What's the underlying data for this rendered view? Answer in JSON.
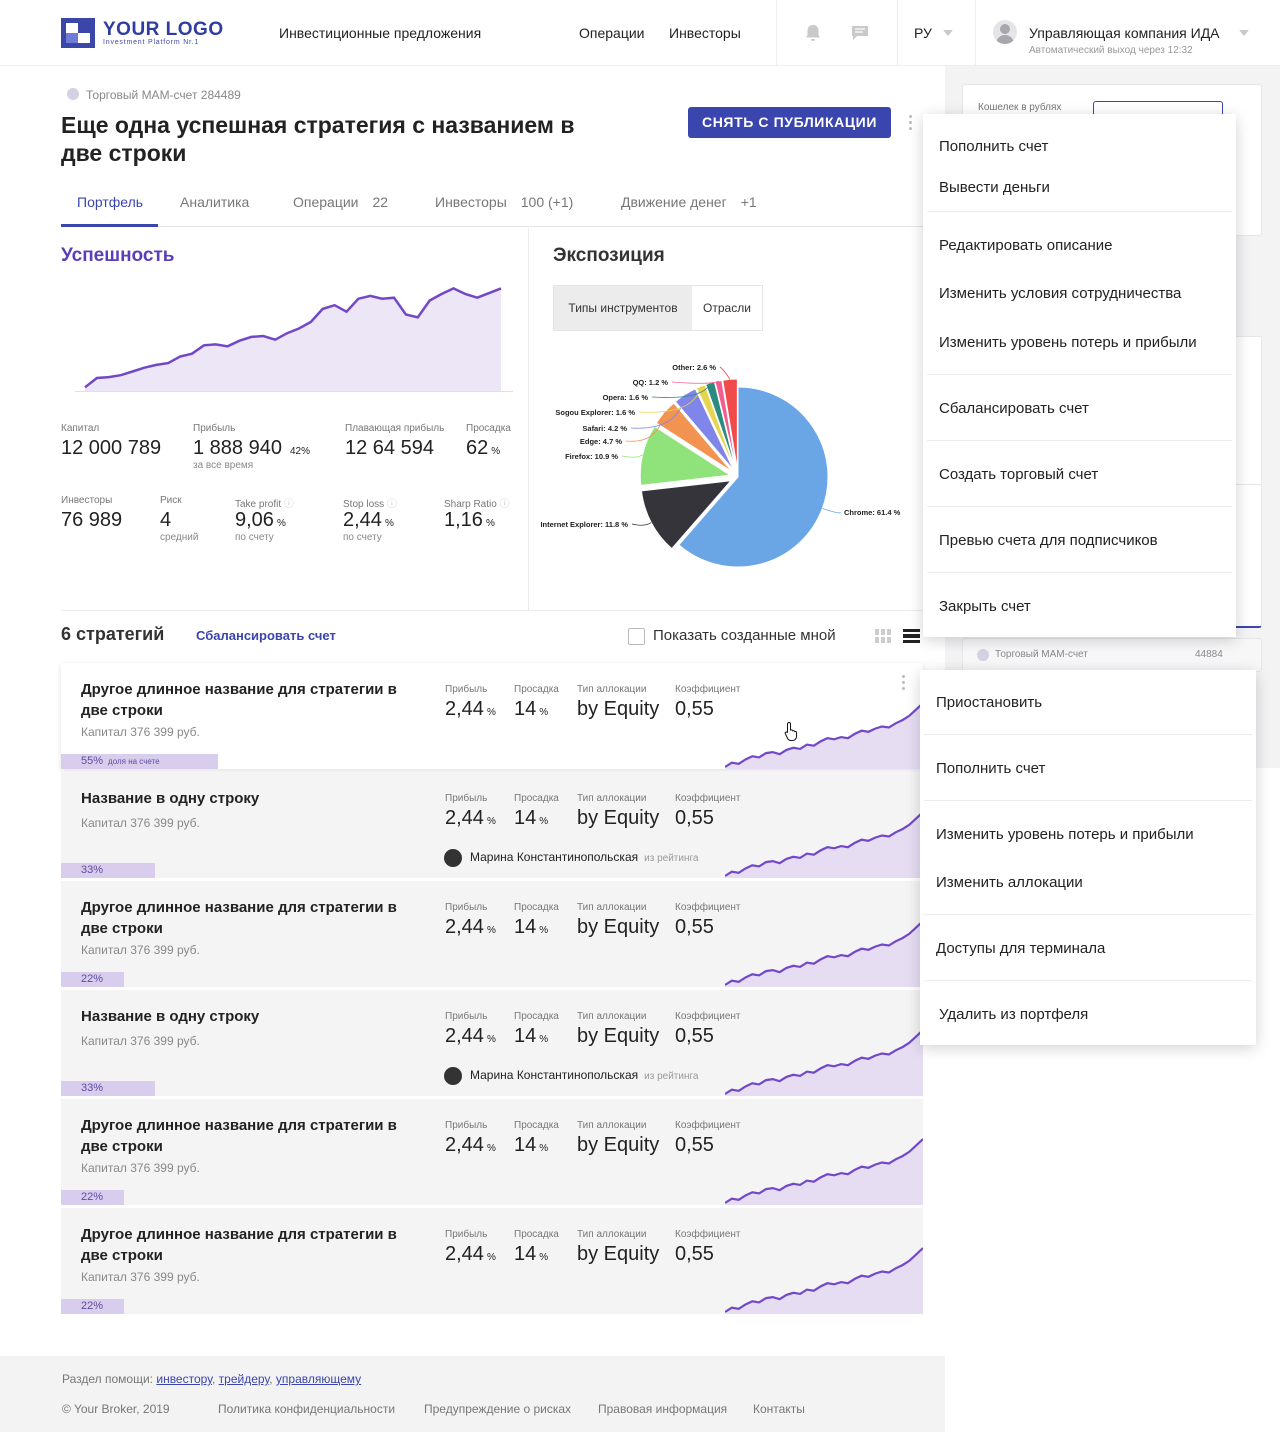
{
  "header": {
    "logo_title": "YOUR LOGO",
    "logo_sub": "Investment Platform Nr.1",
    "nav_offers": "Инвестиционные предложения",
    "nav_operations": "Операции",
    "nav_investors": "Инвесторы",
    "lang": "РУ",
    "company": "Управляющая компания ИДА",
    "autologout": "Автоматический выход через 12:32"
  },
  "right_panel": {
    "wallet_label": "Кошелек в рублях",
    "account_label": "Торговый МАМ-счет",
    "account_number": "44884"
  },
  "account": {
    "type_label": "Торговый МАМ-счет 284489",
    "title": "Еще одна успешная стратегия с названием в две строки",
    "unpublish": "СНЯТЬ С ПУБЛИКАЦИИ"
  },
  "tabs": [
    {
      "label": "Портфель",
      "count": ""
    },
    {
      "label": "Аналитика",
      "count": ""
    },
    {
      "label": "Операции",
      "count": "22"
    },
    {
      "label": "Инвесторы",
      "count": "100 (+1)"
    },
    {
      "label": "Движение денег",
      "count": "+1"
    }
  ],
  "success": {
    "title": "Успешность",
    "spark_values": [
      1.0,
      3.0,
      3.2,
      3.6,
      4.4,
      5.2,
      5.8,
      6.2,
      7.6,
      8.2,
      10.0,
      10.2,
      9.8,
      11.0,
      11.8,
      12.0,
      11.2,
      12.6,
      13.6,
      15.0,
      17.8,
      18.6,
      17.2,
      20.0,
      20.6,
      20.0,
      20.2,
      16.6,
      16.0,
      19.6,
      21.0,
      22.2,
      21.0,
      20.2,
      21.2,
      22.2
    ],
    "stats": {
      "capital_label": "Капитал",
      "capital": "12 000 789",
      "profit_label": "Прибыль",
      "profit": "1 888 940",
      "profit_pct": "42%",
      "profit_sub": "за все время",
      "floating_label": "Плавающая прибыль",
      "floating": "12 64 594",
      "drawdown_label": "Просадка",
      "drawdown": "62",
      "drawdown_unit": "%",
      "investors_label": "Инвесторы",
      "investors": "76 989",
      "risk_label": "Риск",
      "risk": "4",
      "risk_sub": "средний",
      "tp_label": "Take profit",
      "tp": "9,06",
      "tp_unit": "%",
      "tp_sub": "по счету",
      "sl_label": "Stop loss",
      "sl": "2,44",
      "sl_unit": "%",
      "sl_sub": "по счету",
      "sharp_label": "Sharp Ratio",
      "sharp": "1,16",
      "sharp_unit": "%"
    }
  },
  "exposure": {
    "title": "Экспозиция",
    "tab_types": "Типы инструментов",
    "tab_sectors": "Отрасли"
  },
  "chart_data": {
    "type": "pie",
    "slices": [
      {
        "label": "Chrome: 61.4 %",
        "value": 61.4,
        "color": "#6aa6e6"
      },
      {
        "label": "Internet Explorer: 11.8 %",
        "value": 11.8,
        "color": "#34343a"
      },
      {
        "label": "Firefox: 10.9 %",
        "value": 10.9,
        "color": "#8fe37a"
      },
      {
        "label": "Edge: 4.7 %",
        "value": 4.7,
        "color": "#f39352"
      },
      {
        "label": "Safari: 4.2 %",
        "value": 4.2,
        "color": "#8085e9"
      },
      {
        "label": "Sogou Explorer: 1.6 %",
        "value": 1.6,
        "color": "#e6d54e"
      },
      {
        "label": "Opera: 1.6 %",
        "value": 1.6,
        "color": "#2b8b7e"
      },
      {
        "label": "QQ: 1.2 %",
        "value": 1.2,
        "color": "#f45b8e"
      },
      {
        "label": "Other: 2.6 %",
        "value": 2.6,
        "color": "#f04a4a"
      }
    ]
  },
  "strategies": {
    "count_title": "6 стратегий",
    "balance_link": "Сбалансировать счет",
    "show_mine": "Показать созданные мной",
    "metric_labels": {
      "profit": "Прибыль",
      "drawdown": "Просадка",
      "alloc": "Тип аллокации",
      "coef": "Коэффициент"
    },
    "items": [
      {
        "name": "Другое длинное название для стратегии в две строки",
        "capital": "Капитал 376 399 руб.",
        "profit": "2,44",
        "drawdown": "14",
        "alloc": "by Equity",
        "coef": "0,55",
        "share": 0.55,
        "share_label": "55%",
        "share_note": "доля на счете",
        "person": "",
        "person_note": ""
      },
      {
        "name": "Название в одну строку",
        "capital": "Капитал 376 399 руб.",
        "profit": "2,44",
        "drawdown": "14",
        "alloc": "by Equity",
        "coef": "0,55",
        "share": 0.33,
        "share_label": "33%",
        "share_note": "",
        "person": "Марина Константинопольская",
        "person_note": "из рейтинга"
      },
      {
        "name": "Другое длинное название для стратегии в две строки",
        "capital": "Капитал 376 399 руб.",
        "profit": "2,44",
        "drawdown": "14",
        "alloc": "by Equity",
        "coef": "0,55",
        "share": 0.22,
        "share_label": "22%",
        "share_note": "",
        "person": "",
        "person_note": ""
      },
      {
        "name": "Название в одну строку",
        "capital": "Капитал 376 399 руб.",
        "profit": "2,44",
        "drawdown": "14",
        "alloc": "by Equity",
        "coef": "0,55",
        "share": 0.33,
        "share_label": "33%",
        "share_note": "",
        "person": "Марина Константинопольская",
        "person_note": "из рейтинга"
      },
      {
        "name": "Другое длинное название для стратегии в две строки",
        "capital": "Капитал 376 399 руб.",
        "profit": "2,44",
        "drawdown": "14",
        "alloc": "by Equity",
        "coef": "0,55",
        "share": 0.22,
        "share_label": "22%",
        "share_note": "",
        "person": "",
        "person_note": ""
      },
      {
        "name": "Другое длинное название для стратегии в две строки",
        "capital": "Капитал 376 399 руб.",
        "profit": "2,44",
        "drawdown": "14",
        "alloc": "by Equity",
        "coef": "0,55",
        "share": 0.22,
        "share_label": "22%",
        "share_note": "",
        "person": "",
        "person_note": ""
      }
    ],
    "unit_pct": "%"
  },
  "account_menu": [
    "Пополнить счет",
    "Вывести деньги",
    "Редактировать описание",
    "Изменить условия сотрудничества",
    "Изменить уровень потерь и прибыли",
    "Сбалансировать счет",
    "Создать торговый счет",
    "Превью счета для подписчиков",
    "Закрыть счет"
  ],
  "strategy_menu": [
    "Приостановить",
    "Пополнить счет",
    "Изменить уровень потерь и прибыли",
    "Изменить аллокации",
    "Доступы для терминала",
    "Удалить из портфеля"
  ],
  "footer": {
    "help_prefix": "Раздел помощи:",
    "help_investor": "инвестору",
    "help_trader": "трейдеру",
    "help_manager": "управляющему",
    "copyright": "© Your Broker, 2019",
    "privacy": "Политика конфиденциальности",
    "risks": "Предупреждение о рисках",
    "legal": "Правовая информация",
    "contacts": "Контакты"
  },
  "colors": {
    "accent": "#3a45ad",
    "purple": "#6b46c1",
    "area": "#ece6f6"
  }
}
